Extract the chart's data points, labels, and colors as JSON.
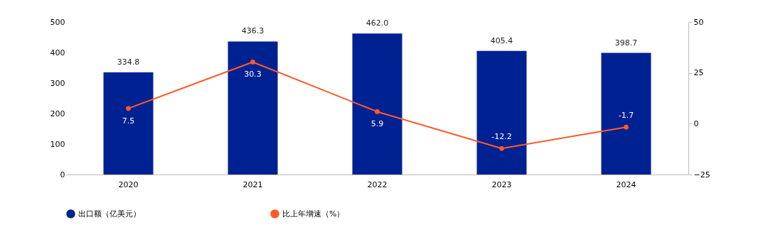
{
  "chart_data": {
    "type": "bar",
    "categories": [
      "2020",
      "2021",
      "2022",
      "2023",
      "2024"
    ],
    "series": [
      {
        "name": "出口额（亿美元）",
        "color": "#002192",
        "values": [
          334.8,
          436.3,
          462.0,
          405.4,
          398.7
        ],
        "value_labels": [
          "334.8",
          "436.3",
          "462.0",
          "405.4",
          "398.7"
        ]
      },
      {
        "name": "比上年增速（%）",
        "type": "line",
        "axis": "y2",
        "color": "#ff5a28",
        "values": [
          7.5,
          30.3,
          5.9,
          -12.2,
          -1.7
        ],
        "value_labels": [
          "7.5",
          "30.3",
          "5.9",
          "-12.2",
          "-1.7"
        ]
      }
    ],
    "ylim": [
      0,
      500
    ],
    "yticks": [
      0,
      100,
      200,
      300,
      400,
      500
    ],
    "y2lim": [
      -25,
      50
    ],
    "y2ticks": [
      -25,
      0,
      25,
      50
    ],
    "legend": "bottom",
    "marker": "circle",
    "grid": false
  }
}
